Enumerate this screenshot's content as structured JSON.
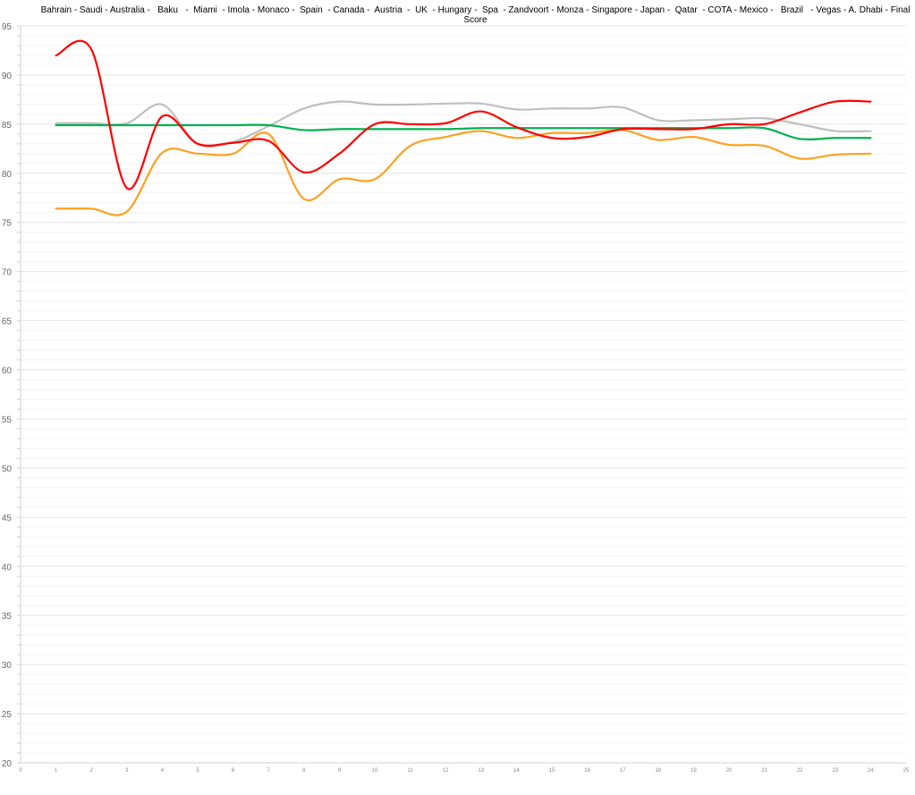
{
  "chart_data": {
    "type": "line",
    "title": "Bahrain - Saudi - Australia -   Baku   -  Miami  - Imola - Monaco -  Spain  - Canada -  Austria  -  UK  - Hungary -  Spa  - Zandvoort - Monza - Singapore - Japan -  Qatar  - COTA - Mexico -   Brazil   - Vegas - A. Dhabi - Final Score",
    "xlabel": "",
    "ylabel": "",
    "xlim": [
      0,
      25
    ],
    "ylim": [
      20,
      95
    ],
    "x_ticks": [
      0,
      1,
      2,
      3,
      4,
      5,
      6,
      7,
      8,
      9,
      10,
      11,
      12,
      13,
      14,
      15,
      16,
      17,
      18,
      19,
      20,
      21,
      22,
      23,
      24,
      25
    ],
    "y_ticks": [
      20,
      25,
      30,
      35,
      40,
      45,
      50,
      55,
      60,
      65,
      70,
      75,
      80,
      85,
      90,
      95
    ],
    "grid": true,
    "smooth": true,
    "x": [
      1,
      2,
      3,
      4,
      5,
      6,
      7,
      8,
      9,
      10,
      11,
      12,
      13,
      14,
      15,
      16,
      17,
      18,
      19,
      20,
      21,
      22,
      23,
      24
    ],
    "series": [
      {
        "color": "#bfbfbf",
        "values": [
          85.1,
          85.1,
          85.1,
          87.0,
          83.0,
          83.2,
          84.8,
          86.6,
          87.3,
          87.0,
          87.0,
          87.1,
          87.1,
          86.5,
          86.6,
          86.6,
          86.7,
          85.4,
          85.4,
          85.5,
          85.6,
          85.0,
          84.3,
          84.3
        ]
      },
      {
        "color": "#00b050",
        "values": [
          84.9,
          84.9,
          84.9,
          84.9,
          84.9,
          84.9,
          84.9,
          84.4,
          84.5,
          84.5,
          84.5,
          84.5,
          84.6,
          84.6,
          84.6,
          84.6,
          84.6,
          84.6,
          84.6,
          84.6,
          84.6,
          83.5,
          83.6,
          83.6
        ]
      },
      {
        "color": "#ffa020",
        "values": [
          76.4,
          76.4,
          76.1,
          82.1,
          82.0,
          82.0,
          84.0,
          77.4,
          79.4,
          79.4,
          82.8,
          83.7,
          84.3,
          83.6,
          84.1,
          84.1,
          84.4,
          83.4,
          83.7,
          82.9,
          82.8,
          81.5,
          81.9,
          82.0
        ]
      },
      {
        "color": "#ff0000",
        "values": [
          92.0,
          92.6,
          78.5,
          85.8,
          83.0,
          83.1,
          83.3,
          80.1,
          82.0,
          85.0,
          85.0,
          85.1,
          86.3,
          84.7,
          83.6,
          83.7,
          84.5,
          84.5,
          84.5,
          85.0,
          85.0,
          86.2,
          87.3,
          87.3
        ]
      }
    ]
  }
}
